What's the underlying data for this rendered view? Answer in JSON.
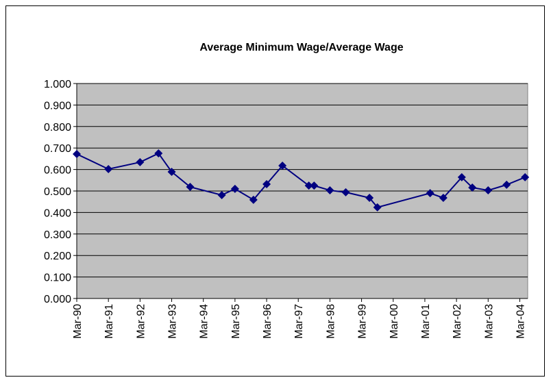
{
  "chart_data": {
    "type": "line",
    "title": "Average Minimum Wage/Average Wage",
    "x": [
      "1990-03",
      "1991-03",
      "1992-03",
      "1992-10",
      "1993-03",
      "1993-10",
      "1994-10",
      "1995-03",
      "1995-10",
      "1996-03",
      "1996-09",
      "1997-07",
      "1997-09",
      "1998-03",
      "1998-09",
      "1999-06",
      "1999-09",
      "2001-05",
      "2001-10",
      "2002-05",
      "2002-09",
      "2003-03",
      "2003-10",
      "2004-05"
    ],
    "series": [
      {
        "name": "Average Minimum Wage/Average Wage",
        "color": "#000080",
        "values": [
          0.672,
          0.602,
          0.634,
          0.675,
          0.589,
          0.519,
          0.481,
          0.51,
          0.459,
          0.532,
          0.618,
          0.525,
          0.525,
          0.503,
          0.494,
          0.468,
          0.424,
          0.49,
          0.468,
          0.564,
          0.516,
          0.503,
          0.529,
          0.564
        ]
      }
    ],
    "xlim": [
      "1990-03",
      "2004-06"
    ],
    "xticks": [
      {
        "value": "1990-03",
        "label": "Mar-90"
      },
      {
        "value": "1991-03",
        "label": "Mar-91"
      },
      {
        "value": "1992-03",
        "label": "Mar-92"
      },
      {
        "value": "1993-03",
        "label": "Mar-93"
      },
      {
        "value": "1994-03",
        "label": "Mar-94"
      },
      {
        "value": "1995-03",
        "label": "Mar-95"
      },
      {
        "value": "1996-03",
        "label": "Mar-96"
      },
      {
        "value": "1997-03",
        "label": "Mar-97"
      },
      {
        "value": "1998-03",
        "label": "Mar-98"
      },
      {
        "value": "1999-03",
        "label": "Mar-99"
      },
      {
        "value": "2000-03",
        "label": "Mar-00"
      },
      {
        "value": "2001-03",
        "label": "Mar-01"
      },
      {
        "value": "2002-03",
        "label": "Mar-02"
      },
      {
        "value": "2003-03",
        "label": "Mar-03"
      },
      {
        "value": "2004-03",
        "label": "Mar-04"
      }
    ],
    "ylim": [
      0,
      1
    ],
    "yticks": [
      {
        "value": 0,
        "label": "0.000"
      },
      {
        "value": 0.1,
        "label": "0.100"
      },
      {
        "value": 0.2,
        "label": "0.200"
      },
      {
        "value": 0.3,
        "label": "0.300"
      },
      {
        "value": 0.4,
        "label": "0.400"
      },
      {
        "value": 0.5,
        "label": "0.500"
      },
      {
        "value": 0.6,
        "label": "0.600"
      },
      {
        "value": 0.7,
        "label": "0.700"
      },
      {
        "value": 0.8,
        "label": "0.800"
      },
      {
        "value": 0.9,
        "label": "0.900"
      },
      {
        "value": 1,
        "label": "1.000"
      }
    ],
    "grid": true,
    "plot_background": "#c0c0c0"
  }
}
